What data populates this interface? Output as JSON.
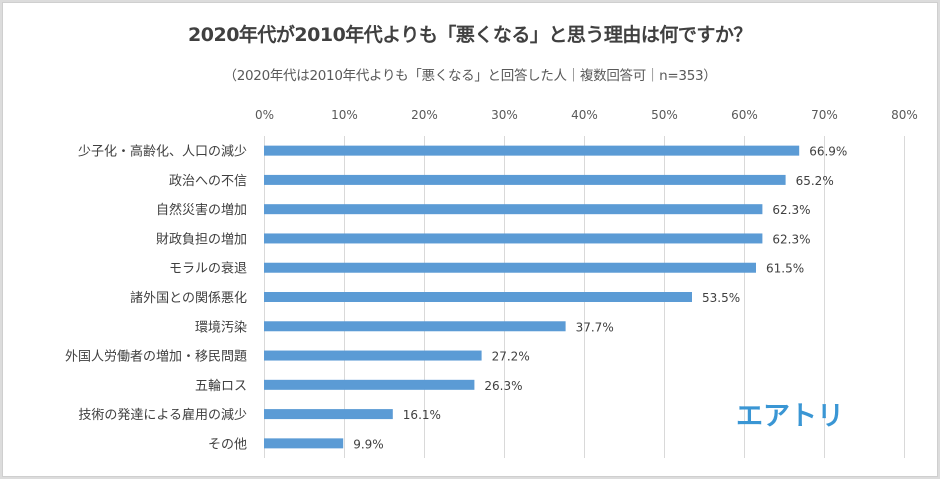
{
  "chart_data": {
    "type": "bar",
    "orientation": "horizontal",
    "title": "2020年代が2010年代よりも「悪くなる」と思う理由は何ですか？",
    "subtitle": "（2020年代は2010年代よりも「悪くなる」と回答した人｜複数回答可｜n=353）",
    "xlabel": "",
    "ylabel": "",
    "xlim": [
      0,
      80
    ],
    "x_ticks": [
      0,
      10,
      20,
      30,
      40,
      50,
      60,
      70,
      80
    ],
    "x_tick_labels": [
      "0%",
      "10%",
      "20%",
      "30%",
      "40%",
      "50%",
      "60%",
      "70%",
      "80%"
    ],
    "grid": "vertical",
    "legend": "none",
    "categories": [
      "少子化・高齢化、人口の減少",
      "政治への不信",
      "自然災害の増加",
      "財政負担の増加",
      "モラルの衰退",
      "諸外国との関係悪化",
      "環境汚染",
      "外国人労働者の増加・移民問題",
      "五輪ロス",
      "技術の発達による雇用の減少",
      "その他"
    ],
    "values": [
      66.9,
      65.2,
      62.3,
      62.3,
      61.5,
      53.5,
      37.7,
      27.2,
      26.3,
      16.1,
      9.9
    ],
    "value_labels": [
      "66.9%",
      "65.2%",
      "62.3%",
      "62.3%",
      "61.5%",
      "53.5%",
      "37.7%",
      "27.2%",
      "26.3%",
      "16.1%",
      "9.9%"
    ],
    "bar_color": "#5b9bd5"
  },
  "logo": {
    "text": "エアトリ",
    "color": "#3a96d4"
  }
}
